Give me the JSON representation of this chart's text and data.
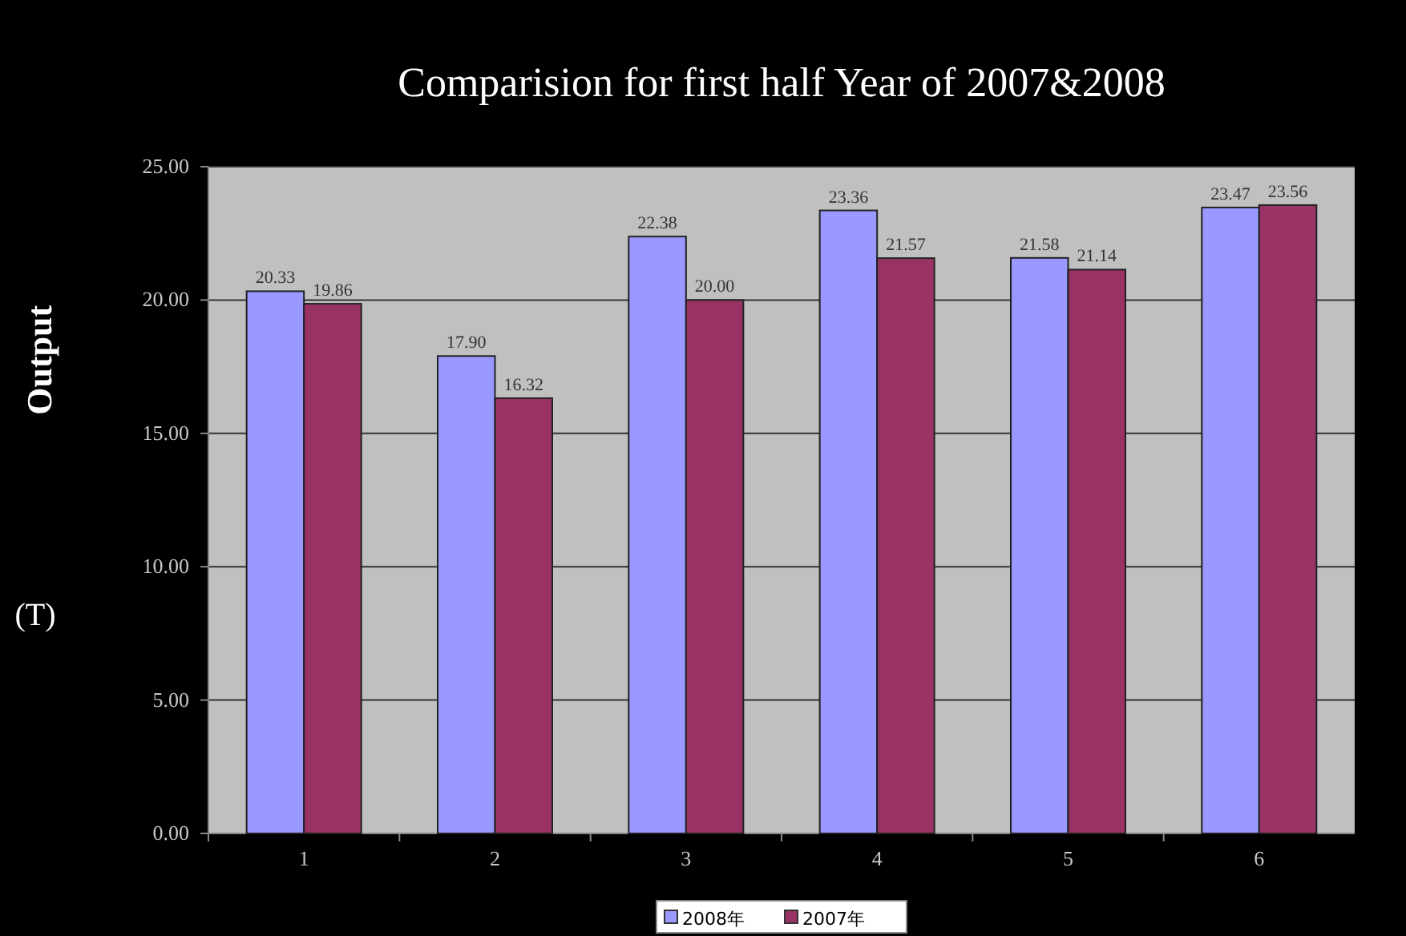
{
  "chart_data": {
    "type": "bar",
    "title": "Comparision for first half Year of 2007&2008",
    "ylabel": "Output",
    "annotations": [
      "(T)"
    ],
    "categories": [
      "1",
      "2",
      "3",
      "4",
      "5",
      "6"
    ],
    "series": [
      {
        "name": "2008年",
        "color": "#9999ff",
        "values": [
          20.33,
          17.9,
          22.38,
          23.36,
          21.58,
          23.47
        ],
        "value_labels": [
          "20.33",
          "17.90",
          "22.38",
          "23.36",
          "21.58",
          "23.47"
        ]
      },
      {
        "name": "2007年",
        "color": "#993366",
        "values": [
          19.86,
          16.32,
          20.0,
          21.57,
          21.14,
          23.56
        ],
        "value_labels": [
          "19.86",
          "16.32",
          "20.00",
          "21.57",
          "21.14",
          "23.56"
        ]
      }
    ],
    "ylim": [
      0,
      25
    ],
    "yticks": [
      {
        "value": 0,
        "label": "0.00"
      },
      {
        "value": 5,
        "label": "5.00"
      },
      {
        "value": 10,
        "label": "10.00"
      },
      {
        "value": 15,
        "label": "15.00"
      },
      {
        "value": 20,
        "label": "20.00"
      },
      {
        "value": 25,
        "label": "25.00"
      }
    ],
    "grid": "y",
    "legend": "bottom"
  }
}
